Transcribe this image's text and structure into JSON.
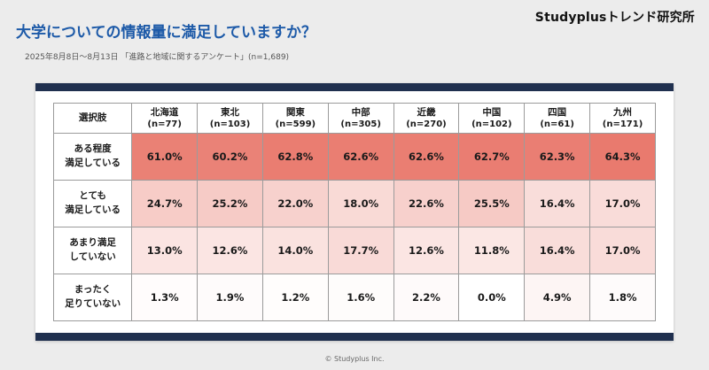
{
  "page": {
    "brand": "Studyplusトレンド研究所",
    "title": "大学についての情報量に満足していますか？",
    "subtitle": "2025年8月8日～8月13日 「進路と地域に関するアンケート」(n=1,689)",
    "footer": "© Studyplus Inc."
  },
  "colors": {
    "heatmap_max": "#E97A6E",
    "navy_bar": "#20304F",
    "title_blue": "#1D5AA8"
  },
  "chart_data": {
    "type": "table",
    "title": "大学についての情報量に満足していますか？",
    "header_label": "選択肢",
    "columns": [
      {
        "label": "北海道",
        "n": "(n=77)"
      },
      {
        "label": "東北",
        "n": "(n=103)"
      },
      {
        "label": "関東",
        "n": "(n=599)"
      },
      {
        "label": "中部",
        "n": "(n=305)"
      },
      {
        "label": "近畿",
        "n": "(n=270)"
      },
      {
        "label": "中国",
        "n": "(n=102)"
      },
      {
        "label": "四国",
        "n": "(n=61)"
      },
      {
        "label": "九州",
        "n": "(n=171)"
      }
    ],
    "rows": [
      {
        "label": "ある程度\n満足している",
        "values": [
          61.0,
          60.2,
          62.8,
          62.6,
          62.6,
          62.7,
          62.3,
          64.3
        ]
      },
      {
        "label": "とても\n満足している",
        "values": [
          24.7,
          25.2,
          22.0,
          18.0,
          22.6,
          25.5,
          16.4,
          17.0
        ]
      },
      {
        "label": "あまり満足\nしていない",
        "values": [
          13.0,
          12.6,
          14.0,
          17.7,
          12.6,
          11.8,
          16.4,
          17.0
        ]
      },
      {
        "label": "まったく\n足りていない",
        "values": [
          1.3,
          1.9,
          1.2,
          1.6,
          2.2,
          0.0,
          4.9,
          1.8
        ]
      }
    ],
    "unit": "%",
    "layout": "heatmap-shaded survey table, darker red = higher percentage"
  }
}
